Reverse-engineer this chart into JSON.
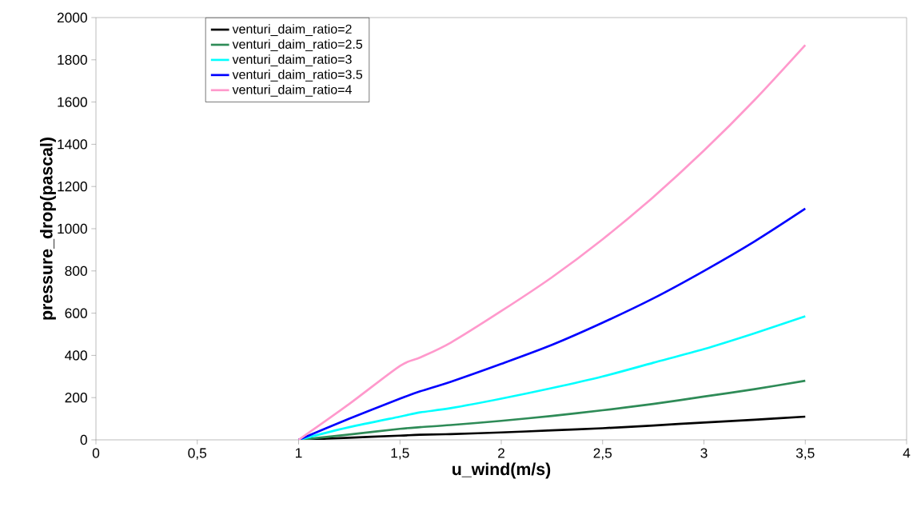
{
  "chart_data": {
    "type": "line",
    "xlabel": "u_wind(m/s)",
    "ylabel": "pressure_drop(pascal)",
    "x": [
      1,
      1.25,
      1.5,
      1.6,
      1.75,
      2,
      2.25,
      2.5,
      2.75,
      3,
      3.25,
      3.5
    ],
    "series": [
      {
        "name": "venturi_daim_ratio=2",
        "color": "#000000",
        "values": [
          0,
          10,
          20,
          24,
          27,
          35,
          45,
          55,
          68,
          82,
          95,
          110
        ]
      },
      {
        "name": "venturi_daim_ratio=2.5",
        "color": "#2e8b57",
        "values": [
          0,
          25,
          52,
          60,
          70,
          90,
          113,
          140,
          170,
          205,
          240,
          280
        ]
      },
      {
        "name": "venturi_daim_ratio=3",
        "color": "#00ffff",
        "values": [
          0,
          60,
          110,
          130,
          150,
          195,
          245,
          300,
          365,
          430,
          505,
          585
        ]
      },
      {
        "name": "venturi_daim_ratio=3.5",
        "color": "#0000ff",
        "values": [
          0,
          100,
          195,
          230,
          275,
          360,
          450,
          555,
          670,
          800,
          940,
          1095
        ]
      },
      {
        "name": "venturi_daim_ratio=4",
        "color": "#ff99cc",
        "values": [
          0,
          170,
          350,
          390,
          460,
          610,
          770,
          950,
          1150,
          1370,
          1610,
          1870
        ]
      }
    ],
    "xlim": [
      0,
      4
    ],
    "ylim": [
      0,
      2000
    ],
    "xticks": [
      0,
      {
        "value": 0.5,
        "label": "0,5"
      },
      1,
      {
        "value": 1.5,
        "label": "1,5"
      },
      2,
      {
        "value": 2.5,
        "label": "2,5"
      },
      3,
      {
        "value": 3.5,
        "label": "3,5"
      },
      4
    ],
    "yticks": [
      0,
      200,
      400,
      600,
      800,
      1000,
      1200,
      1400,
      1600,
      1800,
      2000
    ],
    "legend": "top left",
    "grid": false,
    "marker": "none",
    "line_style": "solid"
  }
}
